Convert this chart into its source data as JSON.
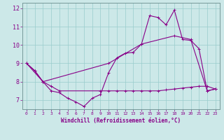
{
  "xlabel": "Windchill (Refroidissement éolien,°C)",
  "ylabel": "",
  "xlim": [
    -0.5,
    23.5
  ],
  "ylim": [
    6.5,
    12.3
  ],
  "yticks": [
    7,
    8,
    9,
    10,
    11,
    12
  ],
  "xticks": [
    0,
    1,
    2,
    3,
    4,
    5,
    6,
    7,
    8,
    9,
    10,
    11,
    12,
    13,
    14,
    15,
    16,
    17,
    18,
    19,
    20,
    21,
    22,
    23
  ],
  "background_color": "#cce8e8",
  "grid_color": "#99cccc",
  "line_color": "#880088",
  "line1_x": [
    0,
    1,
    2,
    3,
    4,
    5,
    6,
    7,
    8,
    9,
    10,
    11,
    12,
    13,
    14,
    15,
    16,
    17,
    18,
    19,
    20,
    21,
    22,
    23
  ],
  "line1_y": [
    9.0,
    8.6,
    8.0,
    7.5,
    7.4,
    7.1,
    6.9,
    6.65,
    7.1,
    7.3,
    8.5,
    9.3,
    9.55,
    9.6,
    10.05,
    11.6,
    11.5,
    11.1,
    11.9,
    10.3,
    10.25,
    9.8,
    7.5,
    7.6
  ],
  "line2_x": [
    0,
    2,
    10,
    14,
    18,
    20,
    22,
    23
  ],
  "line2_y": [
    9.0,
    8.0,
    9.0,
    10.05,
    10.5,
    10.3,
    7.5,
    7.6
  ],
  "line3_x": [
    0,
    1,
    2,
    3,
    4,
    9,
    10,
    11,
    12,
    13,
    14,
    15,
    16,
    17,
    18,
    19,
    20,
    21,
    22,
    23
  ],
  "line3_y": [
    9.0,
    8.6,
    8.0,
    7.75,
    7.5,
    7.5,
    7.5,
    7.5,
    7.5,
    7.5,
    7.5,
    7.5,
    7.5,
    7.55,
    7.6,
    7.65,
    7.7,
    7.75,
    7.75,
    7.6
  ]
}
